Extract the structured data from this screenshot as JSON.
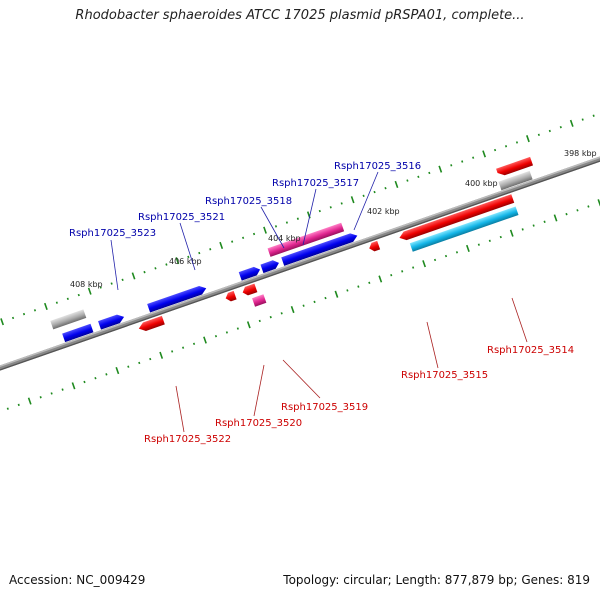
{
  "title": "Rhodobacter sphaeroides ATCC 17025 plasmid pRSPA01, complete...",
  "footer": {
    "accession": "Accession: NC_009429",
    "summary": "Topology: circular; Length: 877,879 bp; Genes: 819"
  },
  "colors": {
    "backbone": "#7a7a7a",
    "forward_cds": "#0000ee",
    "forward_rna": "#e0258f",
    "reverse_cds": "#ee0000",
    "reverse_alt": "#12b4e6",
    "pseudo": "#aaaaaa",
    "tick": "#1f8a1f",
    "label_forward": "#0000aa",
    "label_reverse": "#cc0000"
  },
  "scale": {
    "ticks": [
      {
        "kbp": 398,
        "label": "398 kbp"
      },
      {
        "kbp": 400,
        "label": "400 kbp"
      },
      {
        "kbp": 402,
        "label": "402 kbp"
      },
      {
        "kbp": 404,
        "label": "404 kbp"
      },
      {
        "kbp": 406,
        "label": "406 kbp"
      },
      {
        "kbp": 408,
        "label": "408 kbp"
      }
    ]
  },
  "labels": {
    "forward": [
      {
        "name": "Rsph17025_3523"
      },
      {
        "name": "Rsph17025_3521"
      },
      {
        "name": "Rsph17025_3518"
      },
      {
        "name": "Rsph17025_3517"
      },
      {
        "name": "Rsph17025_3516"
      }
    ],
    "reverse": [
      {
        "name": "Rsph17025_3522"
      },
      {
        "name": "Rsph17025_3520"
      },
      {
        "name": "Rsph17025_3519"
      },
      {
        "name": "Rsph17025_3515"
      },
      {
        "name": "Rsph17025_3514"
      }
    ]
  }
}
